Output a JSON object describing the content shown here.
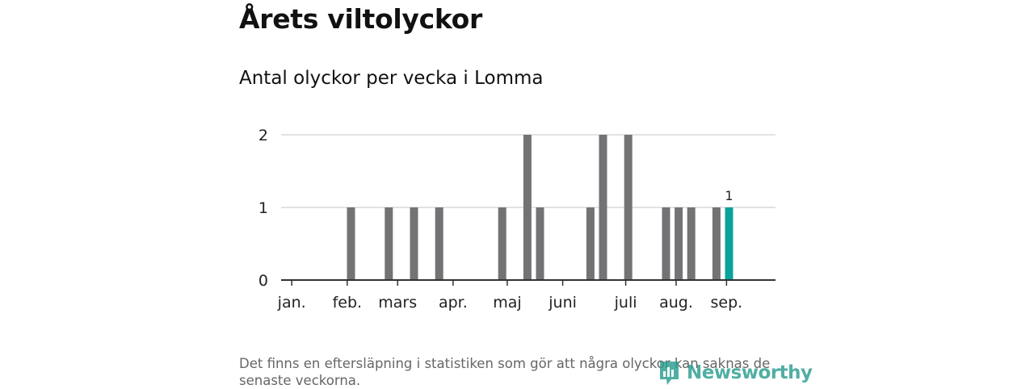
{
  "title": "Årets viltolyckor",
  "subtitle": "Antal olyckor per vecka i Lomma",
  "footnote": "Det finns en eftersläpning i statistiken som gör att några olyckor kan saknas de senaste veckorna.",
  "brand": {
    "name": "Newsworthy",
    "icon": "newsworthy-logo-icon"
  },
  "colors": {
    "bar": "#737376",
    "highlight": "#0aa39a",
    "axis": "#333333",
    "grid": "#d9d9d9",
    "brand": "#2a9d8f"
  },
  "chart_data": {
    "type": "bar",
    "title": "Antal olyckor per vecka i Lomma",
    "xlabel": "",
    "ylabel": "",
    "ylim": [
      0,
      2
    ],
    "y_ticks": [
      0,
      1,
      2
    ],
    "grid": true,
    "x_unit": "week",
    "x": [
      1,
      2,
      3,
      4,
      5,
      6,
      7,
      8,
      9,
      10,
      11,
      12,
      13,
      14,
      15,
      16,
      17,
      18,
      19,
      20,
      21,
      22,
      23,
      24,
      25,
      26,
      27,
      28,
      29,
      30,
      31,
      32,
      33,
      34,
      35,
      36,
      37,
      38
    ],
    "values": [
      0,
      0,
      0,
      0,
      0,
      1,
      0,
      0,
      1,
      0,
      1,
      0,
      1,
      0,
      0,
      0,
      0,
      1,
      0,
      2,
      1,
      0,
      0,
      0,
      1,
      2,
      0,
      2,
      0,
      0,
      1,
      1,
      1,
      0,
      1,
      1,
      0,
      0
    ],
    "highlight_week": 36,
    "highlight_label": "1",
    "month_ticks": [
      {
        "label": "jan.",
        "week": 1.3
      },
      {
        "label": "feb.",
        "week": 5.7
      },
      {
        "label": "mars",
        "week": 9.7
      },
      {
        "label": "apr.",
        "week": 14.1
      },
      {
        "label": "maj",
        "week": 18.4
      },
      {
        "label": "juni",
        "week": 22.8
      },
      {
        "label": "juli",
        "week": 27.8
      },
      {
        "label": "aug.",
        "week": 31.8
      },
      {
        "label": "sep.",
        "week": 35.8
      }
    ]
  }
}
